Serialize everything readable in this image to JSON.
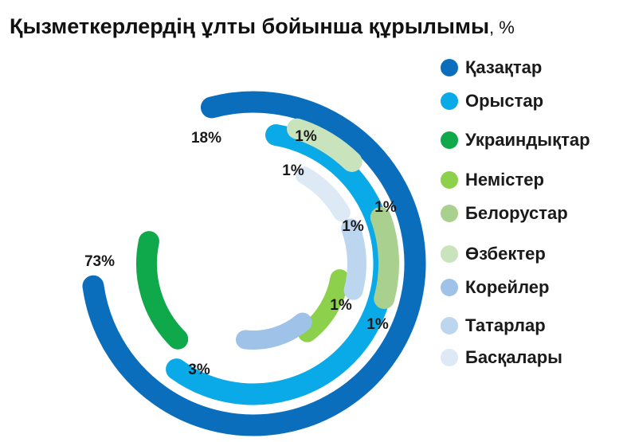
{
  "title": "Қызметкерлердің ұлты бойынша құрылымы",
  "title_unit": ", %",
  "chart_data": {
    "type": "radial-bar",
    "unit": "%",
    "legend_position": "right",
    "series": [
      {
        "name": "Қазақтар",
        "value": 73,
        "label": "73%",
        "color": "#0a6ebd"
      },
      {
        "name": "Орыстар",
        "value": 18,
        "label": "18%",
        "color": "#0aaae8"
      },
      {
        "name": "Украиндықтар",
        "value": 3,
        "label": "3%",
        "color": "#0fa84a"
      },
      {
        "name": "Немістер",
        "value": 1,
        "label": "1%",
        "color": "#8cd04c"
      },
      {
        "name": "Белорустар",
        "value": 1,
        "label": "1%",
        "color": "#a9d08e"
      },
      {
        "name": "Өзбектер",
        "value": 1,
        "label": "1%",
        "color": "#c9e3bd"
      },
      {
        "name": "Корейлер",
        "value": 1,
        "label": "1%",
        "color": "#9fc3e8"
      },
      {
        "name": "Татарлар",
        "value": 1,
        "label": "1%",
        "color": "#bcd6ef"
      },
      {
        "name": "Басқалары",
        "value": 1,
        "label": "1%",
        "color": "#dde9f5"
      }
    ]
  }
}
